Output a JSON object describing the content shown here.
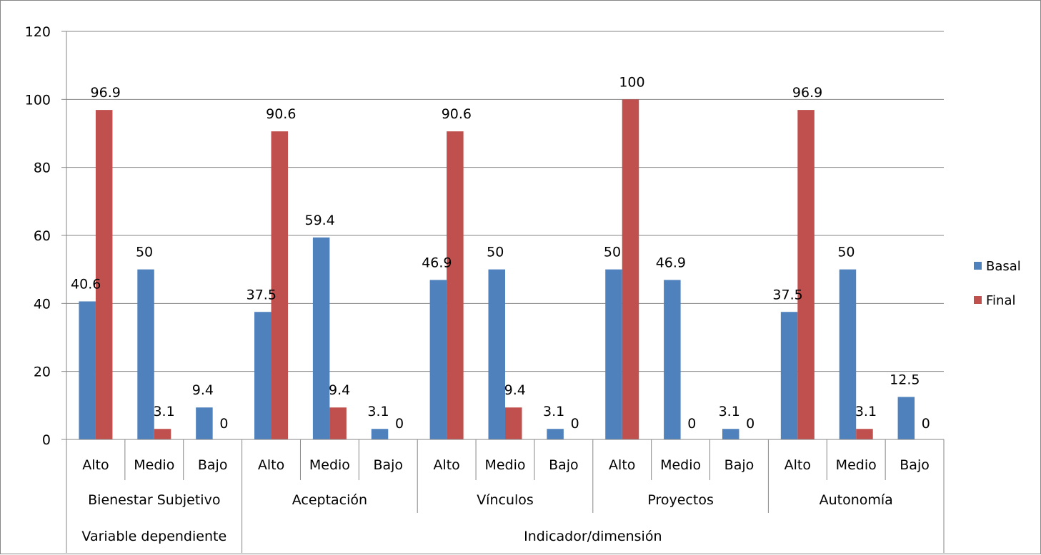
{
  "chart_data": {
    "type": "bar",
    "title": "",
    "xlabel": "",
    "ylabel": "",
    "ylim": [
      0,
      120
    ],
    "yticks": [
      0,
      20,
      40,
      60,
      80,
      100,
      120
    ],
    "grid": true,
    "legend_position": "right",
    "levels": [
      "Alto",
      "Medio",
      "Bajo"
    ],
    "groups": [
      {
        "label": "Bienestar Subjetivo"
      },
      {
        "label": "Aceptación"
      },
      {
        "label": "Vínculos"
      },
      {
        "label": "Proyectos"
      },
      {
        "label": "Autonomía"
      }
    ],
    "top_groups": [
      {
        "label": "Variable dependiente",
        "span": 1
      },
      {
        "label": "Indicador/dimensión",
        "span": 4
      }
    ],
    "series": [
      {
        "name": "Basal",
        "color": "#4F81BD",
        "values": [
          40.6,
          50,
          9.4,
          37.5,
          59.4,
          3.1,
          46.9,
          50,
          3.1,
          50,
          46.9,
          3.1,
          37.5,
          50,
          12.5
        ],
        "labels": [
          "40.6",
          "50",
          "9.4",
          "37.5",
          "59.4",
          "3.1",
          "46.9",
          "50",
          "3.1",
          "50",
          "46.9",
          "3.1",
          "37.5",
          "50",
          "12.5"
        ]
      },
      {
        "name": "Final",
        "color": "#C0504D",
        "values": [
          96.9,
          3.1,
          0,
          90.6,
          9.4,
          0,
          90.6,
          9.4,
          0,
          100,
          0,
          0,
          96.9,
          3.1,
          0
        ],
        "labels": [
          "96.9",
          "3.1",
          "0",
          "90.6",
          "9.4",
          "0",
          "90.6",
          "9.4",
          "0",
          "100",
          "0",
          "0",
          "96.9",
          "3.1",
          "0"
        ]
      }
    ]
  }
}
